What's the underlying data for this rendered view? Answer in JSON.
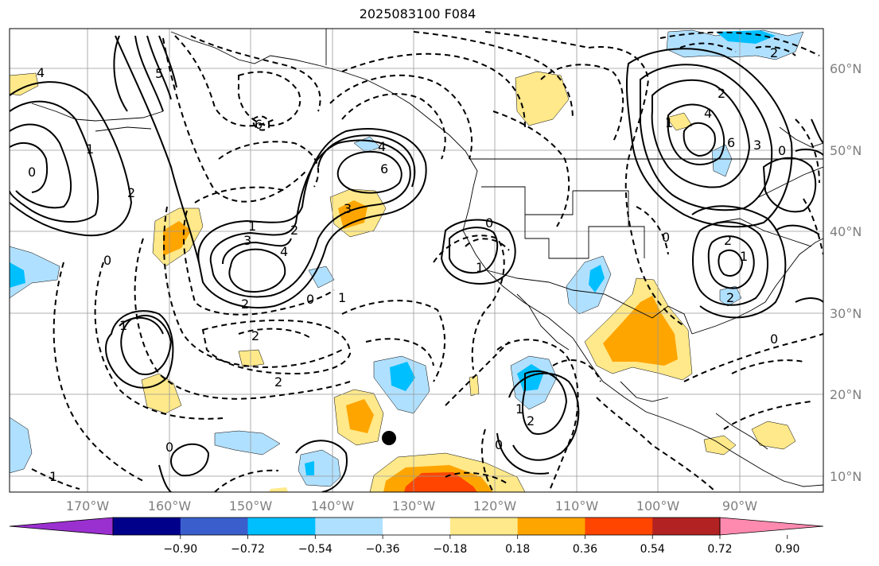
{
  "title": "2025083100 F084",
  "lat_labels": [
    "60°N",
    "50°N",
    "40°N",
    "30°N",
    "20°N",
    "10°N"
  ],
  "lon_labels": [
    "170°W",
    "160°W",
    "150°W",
    "140°W",
    "130°W",
    "120°W",
    "110°W",
    "100°W",
    "90°W"
  ],
  "colorbar": {
    "colors": [
      "#9b30d0",
      "#00008b",
      "#3a5fcd",
      "#00bfff",
      "#b0e0ff",
      "#ffffff",
      "#ffe98a",
      "#ffa500",
      "#ff4500",
      "#b22222",
      "#ff8ab0"
    ],
    "labels": [
      "−0.90",
      "−0.72",
      "−0.54",
      "−0.36",
      "−0.18",
      "0.18",
      "0.36",
      "0.54",
      "0.72",
      "0.90"
    ]
  },
  "contour_labels": [
    "4",
    "1",
    "2",
    "0",
    "5",
    "6",
    "2",
    "4",
    "6",
    "3",
    "1",
    "3",
    "2",
    "4",
    "0",
    "2",
    "1",
    "2",
    "0",
    "1",
    "6",
    "4",
    "3",
    "2",
    "1",
    "0",
    "2",
    "1",
    "2",
    "0",
    "0",
    "1",
    "0",
    "1",
    "2",
    "0",
    "0",
    "2",
    "1"
  ],
  "marker": {
    "lat": 14.5,
    "lon": -133.5
  }
}
